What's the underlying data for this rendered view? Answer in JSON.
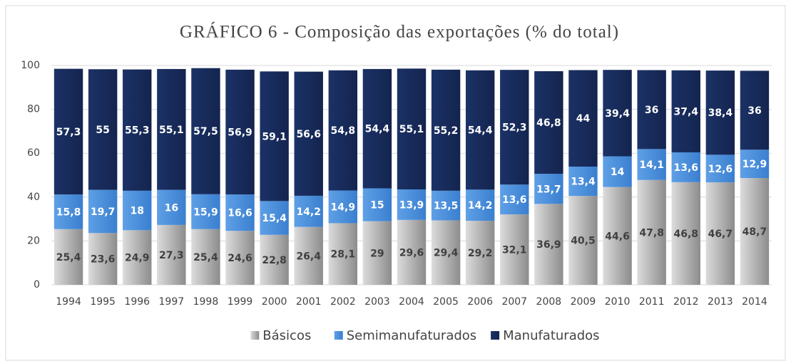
{
  "chart_data": {
    "type": "stacked_bar",
    "title": "GRÁFICO 6 - Composição das exportações (% do total)",
    "categories": [
      "1994",
      "1995",
      "1996",
      "1997",
      "1998",
      "1999",
      "2000",
      "2001",
      "2002",
      "2003",
      "2004",
      "2005",
      "2006",
      "2007",
      "2008",
      "2009",
      "2010",
      "2011",
      "2012",
      "2013",
      "2014"
    ],
    "series": [
      {
        "name": "Básicos",
        "color": "#8c8c8c",
        "values": [
          25.4,
          23.6,
          24.9,
          27.3,
          25.4,
          24.6,
          22.8,
          26.4,
          28.1,
          29,
          29.6,
          29.4,
          29.2,
          32.1,
          36.9,
          40.5,
          44.6,
          47.8,
          46.8,
          46.7,
          48.7
        ],
        "value_labels": [
          "25,4",
          "23,6",
          "24,9",
          "27,3",
          "25,4",
          "24,6",
          "22,8",
          "26,4",
          "28,1",
          "29",
          "29,6",
          "29,4",
          "29,2",
          "32,1",
          "36,9",
          "40,5",
          "44,6",
          "47,8",
          "46,8",
          "46,7",
          "48,7"
        ]
      },
      {
        "name": "Semimanufaturados",
        "color": "#3a7fcf",
        "values": [
          15.8,
          19.7,
          18,
          16,
          15.9,
          16.6,
          15.4,
          14.2,
          14.9,
          15,
          13.9,
          13.5,
          14.2,
          13.6,
          13.7,
          13.4,
          14,
          14.1,
          13.6,
          12.6,
          12.9
        ],
        "value_labels": [
          "15,8",
          "19,7",
          "18",
          "16",
          "15,9",
          "16,6",
          "15,4",
          "14,2",
          "14,9",
          "15",
          "13,9",
          "13,5",
          "14,2",
          "13,6",
          "13,7",
          "13,4",
          "14",
          "14,1",
          "13,6",
          "12,6",
          "12,9"
        ]
      },
      {
        "name": "Manufaturados",
        "color": "#14244f",
        "values": [
          57.3,
          55,
          55.3,
          55.1,
          57.5,
          56.9,
          59.1,
          56.6,
          54.8,
          54.4,
          55.1,
          55.2,
          54.4,
          52.3,
          46.8,
          44,
          39.4,
          36,
          37.4,
          38.4,
          36
        ],
        "value_labels": [
          "57,3",
          "55",
          "55,3",
          "55,1",
          "57,5",
          "56,9",
          "59,1",
          "56,6",
          "54,8",
          "54,4",
          "55,1",
          "55,2",
          "54,4",
          "52,3",
          "46,8",
          "44",
          "39,4",
          "36",
          "37,4",
          "38,4",
          "36"
        ]
      }
    ],
    "ylim": [
      0,
      100
    ],
    "yticks": [
      0,
      20,
      40,
      60,
      80,
      100
    ],
    "grid": true,
    "legend": "bottom"
  }
}
